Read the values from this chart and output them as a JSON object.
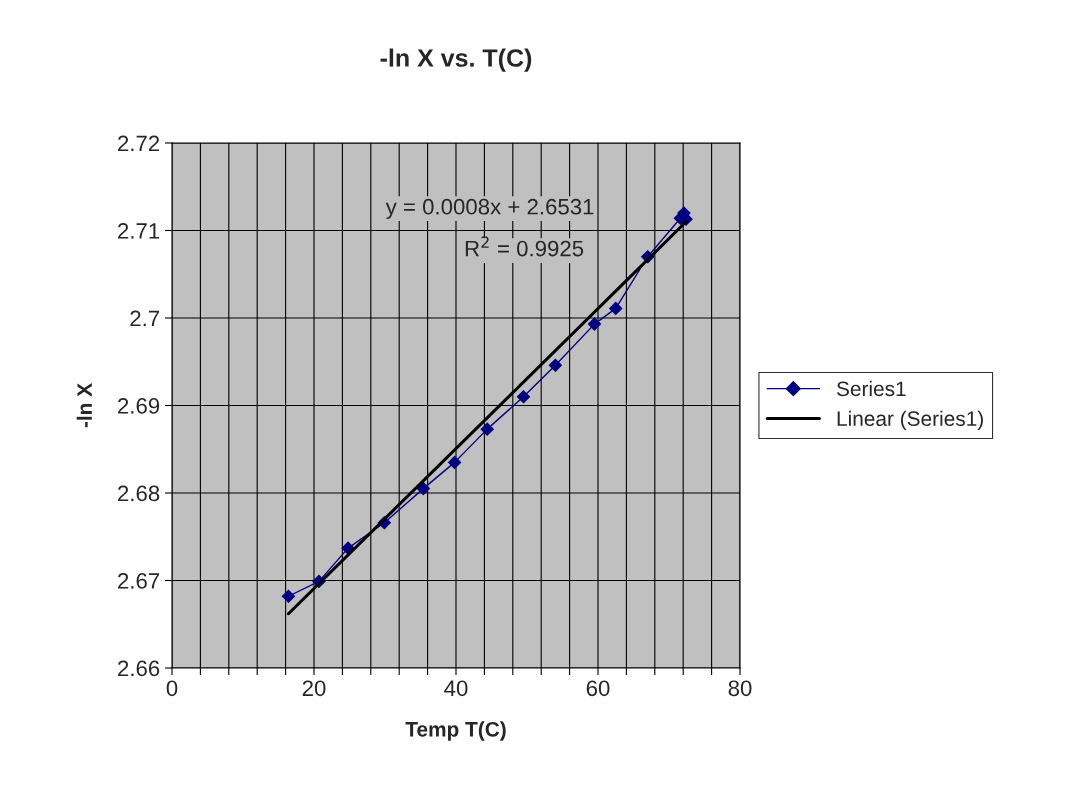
{
  "chart_data": {
    "type": "line",
    "title": "-ln X vs. T(C)",
    "xlabel": "Temp T(C)",
    "ylabel": "-ln X",
    "x": [
      16.4,
      20.7,
      24.8,
      29.9,
      35.4,
      39.8,
      44.4,
      49.5,
      54.0,
      59.5,
      62.5,
      67.0,
      71.6,
      72.1,
      72.4
    ],
    "series": [
      {
        "name": "Series1",
        "color": "#000080",
        "marker": "diamond",
        "values": [
          2.6682,
          2.6699,
          2.6737,
          2.6766,
          2.6805,
          2.6835,
          2.6873,
          2.691,
          2.6946,
          2.6993,
          2.7011,
          2.707,
          2.7114,
          2.712,
          2.7113
        ]
      },
      {
        "name": "Linear (Series1)",
        "color": "#000000",
        "marker": "none",
        "x": [
          16.4,
          72.4
        ],
        "values": [
          2.6662,
          2.711
        ]
      }
    ],
    "xlim": [
      0,
      80
    ],
    "ylim": [
      2.66,
      2.72
    ],
    "xticks": [
      0,
      {
        "value": 4,
        "label": null
      },
      {
        "value": 8,
        "label": null
      },
      {
        "value": 12,
        "label": null
      },
      {
        "value": 16,
        "label": null
      },
      20,
      {
        "value": 24,
        "label": null
      },
      {
        "value": 28,
        "label": null
      },
      {
        "value": 32,
        "label": null
      },
      {
        "value": 36,
        "label": null
      },
      40,
      {
        "value": 44,
        "label": null
      },
      {
        "value": 48,
        "label": null
      },
      {
        "value": 52,
        "label": null
      },
      {
        "value": 56,
        "label": null
      },
      60,
      {
        "value": 64,
        "label": null
      },
      {
        "value": 68,
        "label": null
      },
      {
        "value": 72,
        "label": null
      },
      {
        "value": 76,
        "label": null
      },
      80
    ],
    "yticks": [
      2.66,
      2.67,
      2.68,
      2.69,
      2.7,
      2.71,
      2.72
    ],
    "grid": true,
    "legend": "right",
    "annotations": [
      "y = 0.0008x + 2.6531",
      "R$^{2}$ = 0.9925"
    ]
  }
}
